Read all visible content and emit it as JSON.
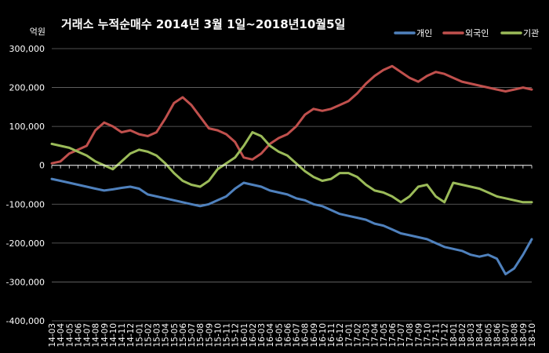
{
  "chart_data": {
    "type": "line",
    "title": "거래소 누적순매수 2014년 3월 1일~2018년10월5일",
    "ylabel": "억원",
    "xlabel": "",
    "ylim": [
      -400000,
      300000
    ],
    "yticks": [
      300000,
      200000,
      100000,
      0,
      -100000,
      -200000,
      -300000,
      -400000
    ],
    "ytick_labels": [
      "300,000",
      "200,000",
      "100,000",
      "0",
      "-100,000",
      "-200,000",
      "-300,000",
      "-400,000"
    ],
    "grid": true,
    "legend_position": "top-right",
    "categories": [
      "14-03",
      "14-04",
      "14-05",
      "14-06",
      "14-07",
      "14-08",
      "14-09",
      "14-10",
      "14-11",
      "14-12",
      "15-01",
      "15-02",
      "15-03",
      "15-04",
      "15-05",
      "15-06",
      "15-07",
      "15-08",
      "15-09",
      "15-10",
      "15-11",
      "15-12",
      "16-01",
      "16-02",
      "16-03",
      "16-04",
      "16-05",
      "16-06",
      "16-07",
      "16-08",
      "16-09",
      "16-10",
      "16-11",
      "16-12",
      "17-01",
      "17-02",
      "17-03",
      "17-04",
      "17-05",
      "17-06",
      "17-07",
      "17-08",
      "17-09",
      "17-10",
      "17-11",
      "17-12",
      "18-01",
      "18-02",
      "18-03",
      "18-04",
      "18-05",
      "18-06",
      "18-07",
      "18-08",
      "18-09",
      "18-10"
    ],
    "series": [
      {
        "name": "개인",
        "color": "#4f81bd",
        "values": [
          -35000,
          -40000,
          -45000,
          -50000,
          -55000,
          -60000,
          -65000,
          -62000,
          -58000,
          -55000,
          -60000,
          -75000,
          -80000,
          -85000,
          -90000,
          -95000,
          -100000,
          -105000,
          -100000,
          -90000,
          -80000,
          -60000,
          -45000,
          -50000,
          -55000,
          -65000,
          -70000,
          -75000,
          -85000,
          -90000,
          -100000,
          -105000,
          -115000,
          -125000,
          -130000,
          -135000,
          -140000,
          -150000,
          -155000,
          -165000,
          -175000,
          -180000,
          -185000,
          -190000,
          -200000,
          -210000,
          -215000,
          -220000,
          -230000,
          -235000,
          -230000,
          -240000,
          -280000,
          -265000,
          -230000,
          -190000
        ]
      },
      {
        "name": "외국인",
        "color": "#c0504d",
        "values": [
          5000,
          10000,
          30000,
          40000,
          50000,
          90000,
          110000,
          100000,
          85000,
          90000,
          80000,
          75000,
          85000,
          120000,
          160000,
          175000,
          155000,
          125000,
          95000,
          90000,
          80000,
          60000,
          20000,
          15000,
          30000,
          55000,
          70000,
          80000,
          100000,
          130000,
          145000,
          140000,
          145000,
          155000,
          165000,
          185000,
          210000,
          230000,
          245000,
          255000,
          240000,
          225000,
          215000,
          230000,
          240000,
          235000,
          225000,
          215000,
          210000,
          205000,
          200000,
          195000,
          190000,
          195000,
          200000,
          195000
        ]
      },
      {
        "name": "기관",
        "color": "#9bbb59",
        "values": [
          55000,
          50000,
          45000,
          35000,
          25000,
          10000,
          0,
          -10000,
          10000,
          30000,
          40000,
          35000,
          25000,
          5000,
          -20000,
          -40000,
          -50000,
          -55000,
          -40000,
          -10000,
          5000,
          20000,
          50000,
          85000,
          75000,
          50000,
          35000,
          25000,
          5000,
          -15000,
          -30000,
          -40000,
          -35000,
          -20000,
          -20000,
          -30000,
          -50000,
          -65000,
          -70000,
          -80000,
          -95000,
          -80000,
          -55000,
          -50000,
          -80000,
          -95000,
          -45000,
          -50000,
          -55000,
          -60000,
          -70000,
          -80000,
          -85000,
          -90000,
          -95000,
          -95000
        ]
      }
    ]
  }
}
